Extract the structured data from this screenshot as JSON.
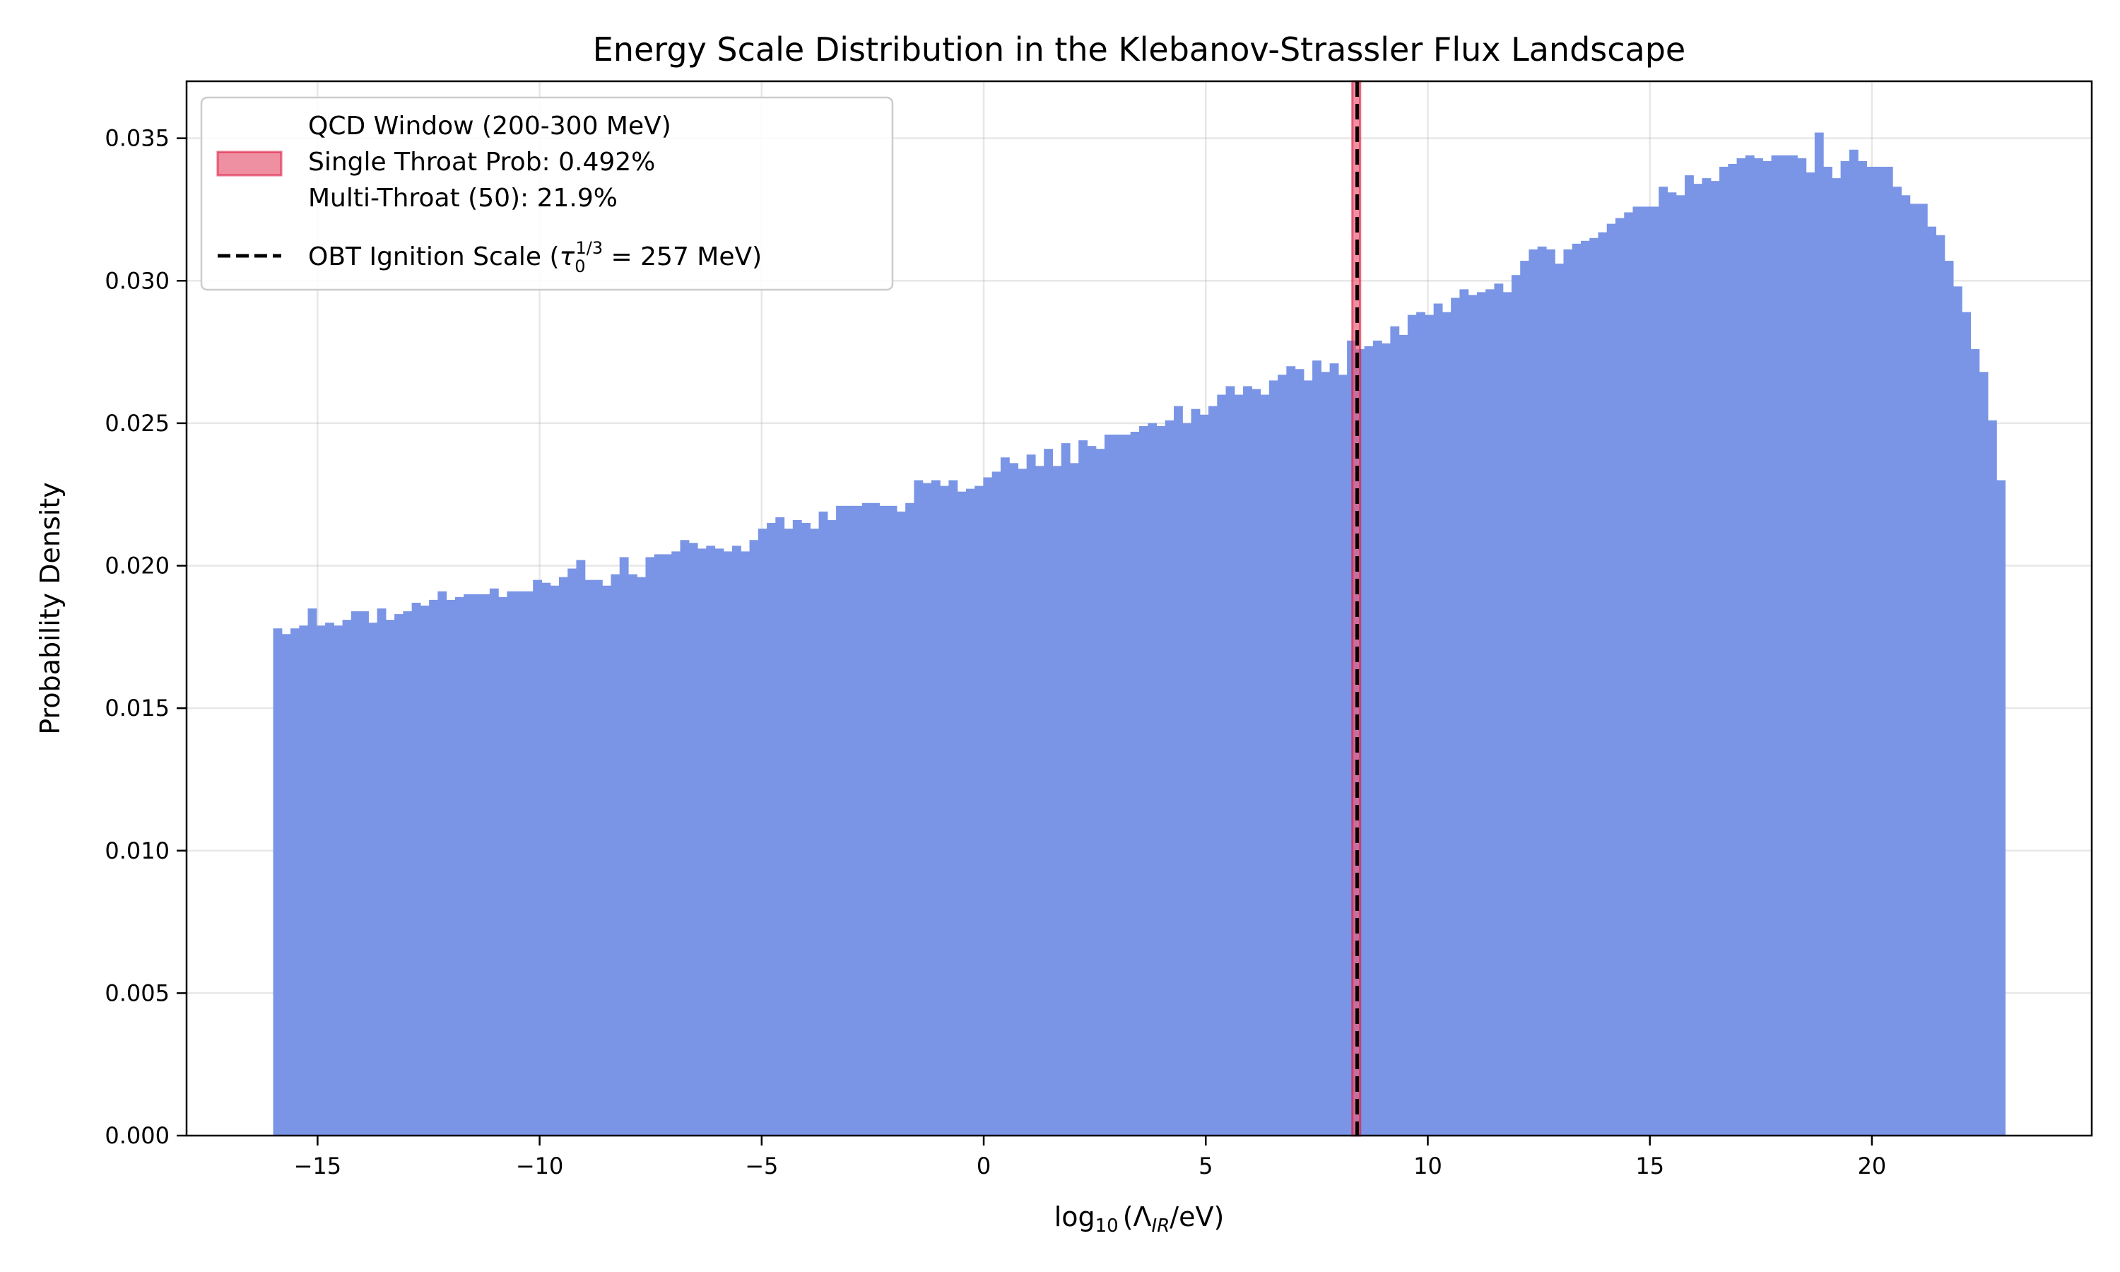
{
  "chart_data": {
    "type": "bar",
    "title": "Energy Scale Distribution in the Klebanov-Strassler Flux Landscape",
    "xlabel": "log₁₀(Λ_IR/eV)",
    "xlabel_parts": {
      "main": "log",
      "sub": "10",
      "open": "(Λ",
      "sub2": "IR",
      "close": "/eV)"
    },
    "ylabel": "Probability Density",
    "xlim": [
      -17.95,
      24.95
    ],
    "ylim": [
      0,
      0.037
    ],
    "grid": true,
    "legend_position": "top-left",
    "x_ticks": [
      -15,
      -10,
      -5,
      0,
      5,
      10,
      15,
      20
    ],
    "x_tick_labels": [
      "−15",
      "−10",
      "−5",
      "0",
      "5",
      "10",
      "15",
      "20"
    ],
    "y_ticks": [
      0,
      0.005,
      0.01,
      0.015,
      0.02,
      0.025,
      0.03,
      0.035
    ],
    "y_tick_labels": [
      "0.000",
      "0.005",
      "0.010",
      "0.015",
      "0.020",
      "0.025",
      "0.030",
      "0.035"
    ],
    "histogram": {
      "bin_start": -16.0,
      "bin_end": 23.0,
      "bins": 200,
      "color": "#7a95e6",
      "values": [
        0.0178,
        0.0176,
        0.0178,
        0.0179,
        0.0185,
        0.0179,
        0.018,
        0.0179,
        0.0181,
        0.0184,
        0.0184,
        0.018,
        0.0185,
        0.0181,
        0.0183,
        0.0184,
        0.0187,
        0.0186,
        0.0188,
        0.0191,
        0.0188,
        0.0189,
        0.019,
        0.019,
        0.019,
        0.0192,
        0.0189,
        0.0191,
        0.0191,
        0.0191,
        0.0195,
        0.0194,
        0.0193,
        0.0196,
        0.0199,
        0.0202,
        0.0195,
        0.0195,
        0.0193,
        0.0197,
        0.0203,
        0.0197,
        0.0196,
        0.0203,
        0.0204,
        0.0204,
        0.0205,
        0.0209,
        0.0208,
        0.0206,
        0.0207,
        0.0206,
        0.0205,
        0.0207,
        0.0205,
        0.0209,
        0.0213,
        0.0215,
        0.0217,
        0.0213,
        0.0216,
        0.0215,
        0.0213,
        0.0219,
        0.0216,
        0.0221,
        0.0221,
        0.0221,
        0.0222,
        0.0222,
        0.0221,
        0.0221,
        0.0219,
        0.0222,
        0.023,
        0.0229,
        0.023,
        0.0228,
        0.023,
        0.0226,
        0.0227,
        0.0228,
        0.0231,
        0.0233,
        0.0238,
        0.0236,
        0.0234,
        0.0239,
        0.0235,
        0.0241,
        0.0235,
        0.0243,
        0.0236,
        0.0244,
        0.0242,
        0.0241,
        0.0246,
        0.0246,
        0.0246,
        0.0247,
        0.0249,
        0.025,
        0.0249,
        0.0251,
        0.0256,
        0.025,
        0.0255,
        0.0253,
        0.0256,
        0.026,
        0.0263,
        0.026,
        0.0263,
        0.0262,
        0.026,
        0.0265,
        0.0267,
        0.027,
        0.0269,
        0.0265,
        0.0272,
        0.0268,
        0.0271,
        0.0267,
        0.0279,
        0.0276,
        0.0277,
        0.0279,
        0.0278,
        0.0284,
        0.0281,
        0.0288,
        0.0289,
        0.0288,
        0.0292,
        0.0289,
        0.0294,
        0.0297,
        0.0295,
        0.0296,
        0.0297,
        0.0299,
        0.0296,
        0.0302,
        0.0307,
        0.0311,
        0.0312,
        0.0311,
        0.0306,
        0.0311,
        0.0313,
        0.0314,
        0.0315,
        0.0317,
        0.032,
        0.0322,
        0.0324,
        0.0326,
        0.0326,
        0.0326,
        0.0333,
        0.0331,
        0.033,
        0.0337,
        0.0334,
        0.0336,
        0.0335,
        0.034,
        0.0341,
        0.0343,
        0.0344,
        0.0343,
        0.0342,
        0.0344,
        0.0344,
        0.0344,
        0.0343,
        0.0338,
        0.0352,
        0.034,
        0.0336,
        0.0342,
        0.0346,
        0.0342,
        0.034,
        0.034,
        0.034,
        0.0333,
        0.033,
        0.0327,
        0.0327,
        0.0319,
        0.0316,
        0.0307,
        0.0298,
        0.0289,
        0.0276,
        0.0268,
        0.0251,
        0.023
      ]
    },
    "qcd_window": {
      "x_range": [
        8.301,
        8.477
      ],
      "color": "#e8607a",
      "edge_color": "#dc143c"
    },
    "obt_line": {
      "x": 8.41,
      "color": "#000000",
      "style": "dashed"
    },
    "legend": [
      {
        "label_lines": [
          "QCD Window (200-300 MeV)",
          "Single Throat Prob: 0.492%",
          "Multi-Throat (50): 21.9%"
        ],
        "marker": "patch"
      },
      {
        "label_prefix": "OBT Ignition Scale (",
        "tau": "τ",
        "tau_sub": "0",
        "tau_sup": "1/3",
        "label_suffix": " = 257 MeV)",
        "marker": "dashed-line"
      }
    ]
  }
}
